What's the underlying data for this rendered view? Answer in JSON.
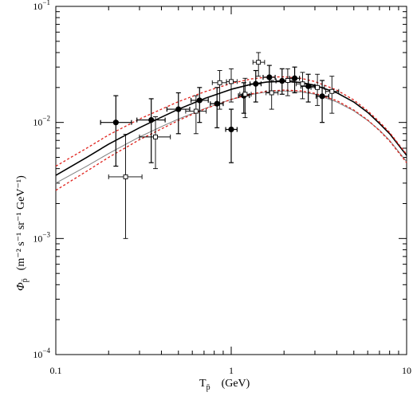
{
  "chart_data": {
    "type": "scatter",
    "title": "",
    "xlabel_main": "T",
    "xlabel_sub": "p̄",
    "xlabel_unit": "(GeV)",
    "ylabel_main": "Φ",
    "ylabel_sub": "p̄",
    "ylabel_unit": "(m⁻² s⁻¹ sr⁻¹ GeV⁻¹)",
    "xscale": "log",
    "yscale": "log",
    "xlim": [
      0.1,
      10
    ],
    "ylim": [
      0.0001,
      0.1
    ],
    "x_tick_labels": [
      {
        "value": 0.1,
        "label": "0.1"
      },
      {
        "value": 1,
        "label": "1"
      },
      {
        "value": 10,
        "label": "10"
      }
    ],
    "y_tick_labels": [
      {
        "value": 0.0001,
        "base": "10",
        "exp": "−4"
      },
      {
        "value": 0.001,
        "base": "10",
        "exp": "−3"
      },
      {
        "value": 0.01,
        "base": "10",
        "exp": "−2"
      },
      {
        "value": 0.1,
        "base": "10",
        "exp": "−1"
      }
    ],
    "grid": false,
    "colors": {
      "dashed_band": "#e0211b",
      "solid_main": "#000000",
      "solid_secondary": "#808080"
    },
    "series": [
      {
        "style": "solid-black",
        "x": [
          0.1,
          0.15,
          0.2,
          0.3,
          0.4,
          0.5,
          0.7,
          1.0,
          1.3,
          1.6,
          2.0,
          2.5,
          3.0,
          4.0,
          5.0,
          6.0,
          7.0,
          8.0,
          10.0
        ],
        "y": [
          0.0035,
          0.005,
          0.0065,
          0.009,
          0.0111,
          0.013,
          0.016,
          0.0193,
          0.0213,
          0.0223,
          0.0226,
          0.0221,
          0.0209,
          0.018,
          0.015,
          0.0122,
          0.0098,
          0.008,
          0.0052
        ]
      },
      {
        "style": "solid-gray",
        "x": [
          0.1,
          0.15,
          0.2,
          0.3,
          0.4,
          0.5,
          0.7,
          1.0,
          1.3,
          1.6,
          2.0,
          2.5,
          3.0,
          4.0,
          5.0,
          6.0,
          7.0,
          8.0,
          10.0
        ],
        "y": [
          0.003,
          0.0042,
          0.0054,
          0.0075,
          0.0092,
          0.0107,
          0.0131,
          0.0158,
          0.0174,
          0.0183,
          0.0187,
          0.0183,
          0.0175,
          0.015,
          0.0126,
          0.0104,
          0.0086,
          0.007,
          0.0046
        ]
      },
      {
        "style": "dashed-red-upper",
        "x": [
          0.1,
          0.15,
          0.2,
          0.3,
          0.4,
          0.5,
          0.7,
          1.0,
          1.3,
          1.6,
          2.0,
          2.5,
          3.0,
          4.0,
          5.0,
          6.0,
          7.0,
          8.0,
          10.0
        ],
        "y": [
          0.0042,
          0.006,
          0.0078,
          0.0107,
          0.013,
          0.0151,
          0.0183,
          0.0217,
          0.0237,
          0.0246,
          0.0247,
          0.024,
          0.0225,
          0.019,
          0.0156,
          0.0126,
          0.0101,
          0.0082,
          0.0053
        ]
      },
      {
        "style": "dashed-red-lower",
        "x": [
          0.1,
          0.15,
          0.2,
          0.3,
          0.4,
          0.5,
          0.7,
          1.0,
          1.3,
          1.6,
          2.0,
          2.5,
          3.0,
          4.0,
          5.0,
          6.0,
          7.0,
          8.0,
          10.0
        ],
        "y": [
          0.0026,
          0.0038,
          0.005,
          0.0071,
          0.0088,
          0.0104,
          0.013,
          0.0158,
          0.0176,
          0.0186,
          0.019,
          0.0187,
          0.0178,
          0.0154,
          0.0128,
          0.0105,
          0.0085,
          0.0069,
          0.0045
        ]
      },
      {
        "style": "filled-circle-points",
        "points": [
          {
            "x": 0.22,
            "y": 0.01,
            "xlo": 0.18,
            "xhi": 0.27,
            "ylo": 0.0042,
            "yhi": 0.017
          },
          {
            "x": 0.35,
            "y": 0.0105,
            "xlo": 0.29,
            "xhi": 0.42,
            "ylo": 0.0045,
            "yhi": 0.016
          },
          {
            "x": 0.5,
            "y": 0.013,
            "xlo": 0.43,
            "xhi": 0.58,
            "ylo": 0.008,
            "yhi": 0.018
          },
          {
            "x": 0.66,
            "y": 0.0155,
            "xlo": 0.59,
            "xhi": 0.74,
            "ylo": 0.01,
            "yhi": 0.02
          },
          {
            "x": 0.83,
            "y": 0.0145,
            "xlo": 0.76,
            "xhi": 0.9,
            "ylo": 0.009,
            "yhi": 0.02
          },
          {
            "x": 1.0,
            "y": 0.0087,
            "xlo": 0.93,
            "xhi": 1.08,
            "ylo": 0.0045,
            "yhi": 0.013
          },
          {
            "x": 1.18,
            "y": 0.017,
            "xlo": 1.1,
            "xhi": 1.27,
            "ylo": 0.012,
            "yhi": 0.022
          },
          {
            "x": 1.38,
            "y": 0.0215,
            "xlo": 1.28,
            "xhi": 1.48,
            "ylo": 0.015,
            "yhi": 0.028
          },
          {
            "x": 1.65,
            "y": 0.0245,
            "xlo": 1.52,
            "xhi": 1.78,
            "ylo": 0.018,
            "yhi": 0.031
          },
          {
            "x": 1.95,
            "y": 0.0228,
            "xlo": 1.8,
            "xhi": 2.1,
            "ylo": 0.0175,
            "yhi": 0.029
          },
          {
            "x": 2.3,
            "y": 0.024,
            "xlo": 2.15,
            "xhi": 2.45,
            "ylo": 0.018,
            "yhi": 0.03
          },
          {
            "x": 2.75,
            "y": 0.0205,
            "xlo": 2.5,
            "xhi": 3.0,
            "ylo": 0.015,
            "yhi": 0.026
          },
          {
            "x": 3.3,
            "y": 0.0168,
            "xlo": 3.05,
            "xhi": 3.6,
            "ylo": 0.01,
            "yhi": 0.023
          }
        ]
      },
      {
        "style": "open-square-points",
        "points": [
          {
            "x": 0.25,
            "y": 0.0034,
            "xlo": 0.2,
            "xhi": 0.31,
            "ylo": 0.001,
            "yhi": 0.0079
          },
          {
            "x": 0.37,
            "y": 0.0075,
            "xlo": 0.3,
            "xhi": 0.45,
            "ylo": 0.004,
            "yhi": 0.0112
          },
          {
            "x": 0.63,
            "y": 0.0125,
            "xlo": 0.55,
            "xhi": 0.72,
            "ylo": 0.008,
            "yhi": 0.017
          },
          {
            "x": 0.86,
            "y": 0.022,
            "xlo": 0.78,
            "xhi": 0.94,
            "ylo": 0.013,
            "yhi": 0.028
          },
          {
            "x": 1.0,
            "y": 0.0225,
            "xlo": 0.94,
            "xhi": 1.08,
            "ylo": 0.015,
            "yhi": 0.029
          },
          {
            "x": 1.2,
            "y": 0.0175,
            "xlo": 1.12,
            "xhi": 1.3,
            "ylo": 0.011,
            "yhi": 0.024
          },
          {
            "x": 1.43,
            "y": 0.033,
            "xlo": 1.33,
            "xhi": 1.55,
            "ylo": 0.025,
            "yhi": 0.04
          },
          {
            "x": 1.7,
            "y": 0.018,
            "xlo": 1.58,
            "xhi": 1.85,
            "ylo": 0.013,
            "yhi": 0.023
          },
          {
            "x": 2.1,
            "y": 0.023,
            "xlo": 1.95,
            "xhi": 2.25,
            "ylo": 0.017,
            "yhi": 0.029
          },
          {
            "x": 2.55,
            "y": 0.0215,
            "xlo": 2.35,
            "xhi": 2.75,
            "ylo": 0.016,
            "yhi": 0.027
          },
          {
            "x": 3.1,
            "y": 0.02,
            "xlo": 2.85,
            "xhi": 3.4,
            "ylo": 0.014,
            "yhi": 0.026
          },
          {
            "x": 3.75,
            "y": 0.0185,
            "xlo": 3.45,
            "xhi": 4.1,
            "ylo": 0.012,
            "yhi": 0.025
          }
        ]
      }
    ]
  }
}
